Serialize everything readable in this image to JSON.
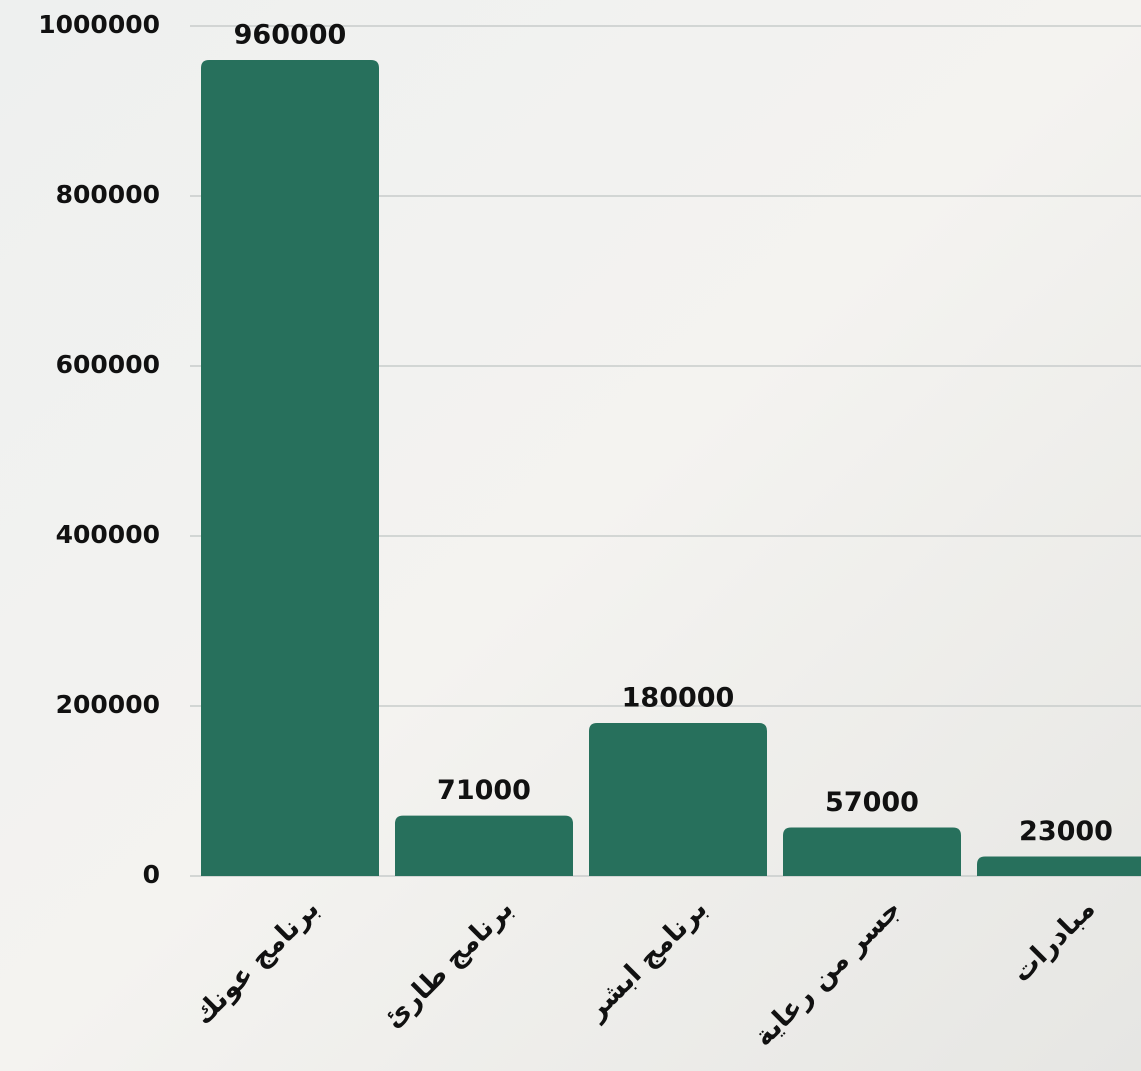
{
  "chart_data": {
    "type": "bar",
    "categories": [
      "برنامج عونك",
      "برنامج طارئ",
      "برنامج ابشر",
      "جسر من رعاية",
      "مبادرات"
    ],
    "values": [
      960000,
      71000,
      180000,
      57000,
      23000
    ],
    "color": "#27705c",
    "ylim": [
      0,
      1000000
    ],
    "yticks": [
      0,
      200000,
      400000,
      600000,
      800000,
      1000000
    ],
    "grid": true
  }
}
